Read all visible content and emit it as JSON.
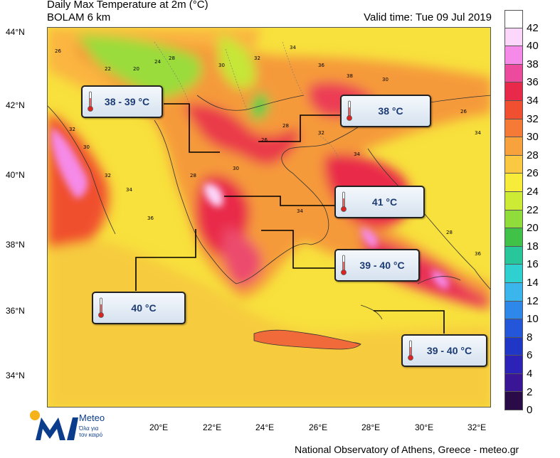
{
  "header": {
    "title_line1": "Daily Max Temperature at 2m (°C)",
    "title_line2": "BOLAM 6 km",
    "valid_time": "Valid time: Tue 09 Jul 2019"
  },
  "footer": {
    "credit": "National Observatory of Athens, Greece - meteo.gr"
  },
  "logo": {
    "name": "Meteo",
    "tagline": "Όλα για τον καιρό",
    "icon": "meteo-m-logo-icon"
  },
  "axes": {
    "lat_labels": [
      "44°N",
      "42°N",
      "40°N",
      "38°N",
      "36°N",
      "34°N"
    ],
    "lon_labels": [
      "20°E",
      "22°E",
      "24°E",
      "26°E",
      "28°E",
      "30°E",
      "32°E"
    ]
  },
  "colorbar": {
    "labels": [
      "42",
      "40",
      "38",
      "36",
      "34",
      "32",
      "30",
      "28",
      "26",
      "24",
      "22",
      "20",
      "18",
      "16",
      "14",
      "12",
      "10",
      "8",
      "6",
      "4",
      "2",
      "0"
    ],
    "colors": [
      "#ffffff",
      "#fcd6fb",
      "#f58ae8",
      "#ec4b9d",
      "#e9294a",
      "#f0502f",
      "#f47a36",
      "#f8a23e",
      "#fbc841",
      "#f7ec39",
      "#cdea34",
      "#8fdc3a",
      "#3fc247",
      "#28c79b",
      "#2ed1cf",
      "#3ab6ec",
      "#2d88ea",
      "#2456d9",
      "#1f36c6",
      "#2d22b7",
      "#3a1596",
      "#2a0b48"
    ]
  },
  "callouts": [
    {
      "id": "callout-38-39",
      "text": "38 - 39 °C"
    },
    {
      "id": "callout-38",
      "text": "38 °C"
    },
    {
      "id": "callout-41",
      "text": "41 °C"
    },
    {
      "id": "callout-39-40-a",
      "text": "39 - 40 °C"
    },
    {
      "id": "callout-40",
      "text": "40 °C"
    },
    {
      "id": "callout-39-40-b",
      "text": "39 - 40 °C"
    }
  ],
  "map_labels": [
    "26",
    "22",
    "20",
    "24",
    "28",
    "30",
    "32",
    "34",
    "36",
    "38",
    "30",
    "28",
    "26",
    "34",
    "32",
    "30",
    "32",
    "34",
    "36",
    "28",
    "30",
    "26",
    "28",
    "32",
    "34",
    "32",
    "30",
    "28",
    "36",
    "34"
  ]
}
